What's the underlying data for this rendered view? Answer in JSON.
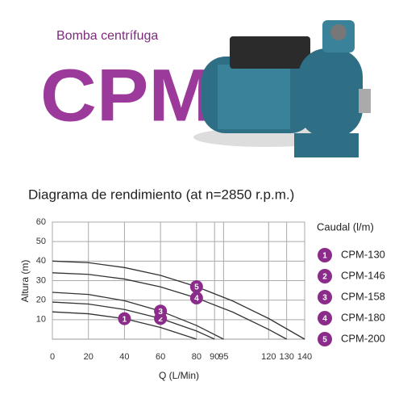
{
  "header": {
    "subtitle": "Bomba centrífuga",
    "title": "CPM"
  },
  "chart_data": {
    "type": "line",
    "title": "Diagrama de rendimiento (at n=2850 r.p.m.)",
    "x_label": "Q (L/Min)",
    "y_label": "Altura (m)",
    "legend_title": "Caudal (l/m)",
    "xlim": [
      0,
      140
    ],
    "xticks": [
      0,
      20,
      40,
      60,
      80,
      90,
      95,
      120,
      130,
      140
    ],
    "ylim": [
      0,
      60
    ],
    "yticks": [
      10,
      20,
      30,
      40,
      50,
      60
    ],
    "grid": true,
    "legend": "right",
    "badge_color": "#8b2c8b",
    "series": [
      {
        "name": "CPM-130",
        "badge": "1",
        "color": "#333333",
        "x": [
          0,
          20,
          40,
          60,
          80
        ],
        "values": [
          14,
          13,
          10.5,
          6,
          0
        ]
      },
      {
        "name": "CPM-146",
        "badge": "2",
        "color": "#333333",
        "x": [
          0,
          20,
          40,
          60,
          80,
          90
        ],
        "values": [
          19,
          18,
          15.2,
          10.6,
          4.2,
          0
        ]
      },
      {
        "name": "CPM-158",
        "badge": "3",
        "color": "#333333",
        "x": [
          0,
          20,
          40,
          60,
          80,
          95
        ],
        "values": [
          24,
          22.9,
          19.7,
          14.4,
          7,
          0
        ]
      },
      {
        "name": "CPM-180",
        "badge": "4",
        "color": "#333333",
        "x": [
          0,
          20,
          40,
          60,
          80,
          100,
          120,
          130
        ],
        "values": [
          34,
          33.2,
          30.8,
          26.8,
          21.1,
          13.9,
          5,
          0
        ]
      },
      {
        "name": "CPM-200",
        "badge": "5",
        "color": "#333333",
        "x": [
          0,
          20,
          40,
          60,
          80,
          100,
          120,
          140
        ],
        "values": [
          40,
          39.2,
          36.7,
          32.7,
          26.9,
          19.6,
          10.6,
          0
        ]
      }
    ]
  }
}
